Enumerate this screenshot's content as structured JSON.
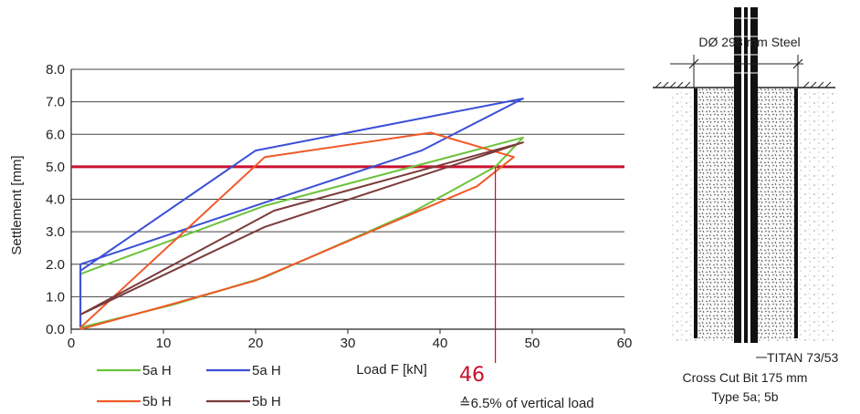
{
  "chart_data": {
    "type": "line",
    "xlabel": "Load F [kN]",
    "ylabel": "Settlement [mm]",
    "xlim": [
      0,
      60
    ],
    "ylim": [
      0,
      8
    ],
    "x_ticks": [
      "0",
      "10",
      "20",
      "30",
      "40",
      "50",
      "60"
    ],
    "y_ticks": [
      "0.0",
      "1.0",
      "2.0",
      "3.0",
      "4.0",
      "5.0",
      "6.0",
      "7.0",
      "8.0"
    ],
    "grid": "horizontal",
    "legend": "bottom-left",
    "series": [
      {
        "name": "5a H",
        "color": "#6cc23b",
        "points": [
          [
            1,
            0.05
          ],
          [
            11,
            0.75
          ],
          [
            21,
            1.6
          ],
          [
            37,
            3.6
          ],
          [
            46,
            5.0
          ],
          [
            49,
            5.9
          ],
          [
            21,
            3.8
          ],
          [
            1,
            1.7
          ],
          [
            1,
            0.05
          ]
        ]
      },
      {
        "name": "5a H",
        "color": "#3b4fd6",
        "points": [
          [
            1,
            0.05
          ],
          [
            1,
            2.0
          ],
          [
            21,
            3.9
          ],
          [
            38,
            5.5
          ],
          [
            49,
            7.1
          ],
          [
            20,
            5.5
          ],
          [
            1,
            1.8
          ]
        ]
      },
      {
        "name": "5b H",
        "color": "#f05a28",
        "points": [
          [
            1,
            0.0
          ],
          [
            10,
            0.7
          ],
          [
            20,
            1.5
          ],
          [
            44,
            4.4
          ],
          [
            48,
            5.3
          ],
          [
            39,
            6.05
          ],
          [
            21,
            5.3
          ],
          [
            1,
            0.05
          ]
        ]
      },
      {
        "name": "5b H",
        "color": "#7a3b3b",
        "points": [
          [
            1,
            0.45
          ],
          [
            21,
            3.15
          ],
          [
            49,
            5.75
          ],
          [
            22,
            3.65
          ],
          [
            1,
            0.45
          ]
        ]
      }
    ],
    "limit_line": {
      "y": 5.0,
      "color": "#c8102e"
    },
    "annotation": {
      "x": 46,
      "text": "46",
      "color": "#c8102e"
    },
    "footnote": "≙6.5% of vertical load"
  },
  "pile_figure": {
    "diameter_label": "DØ 298 mm Steel",
    "titan_label": "TITAN 73/53",
    "bit_label": "Cross Cut Bit 175 mm",
    "type_label": "Type 5a; 5b"
  }
}
